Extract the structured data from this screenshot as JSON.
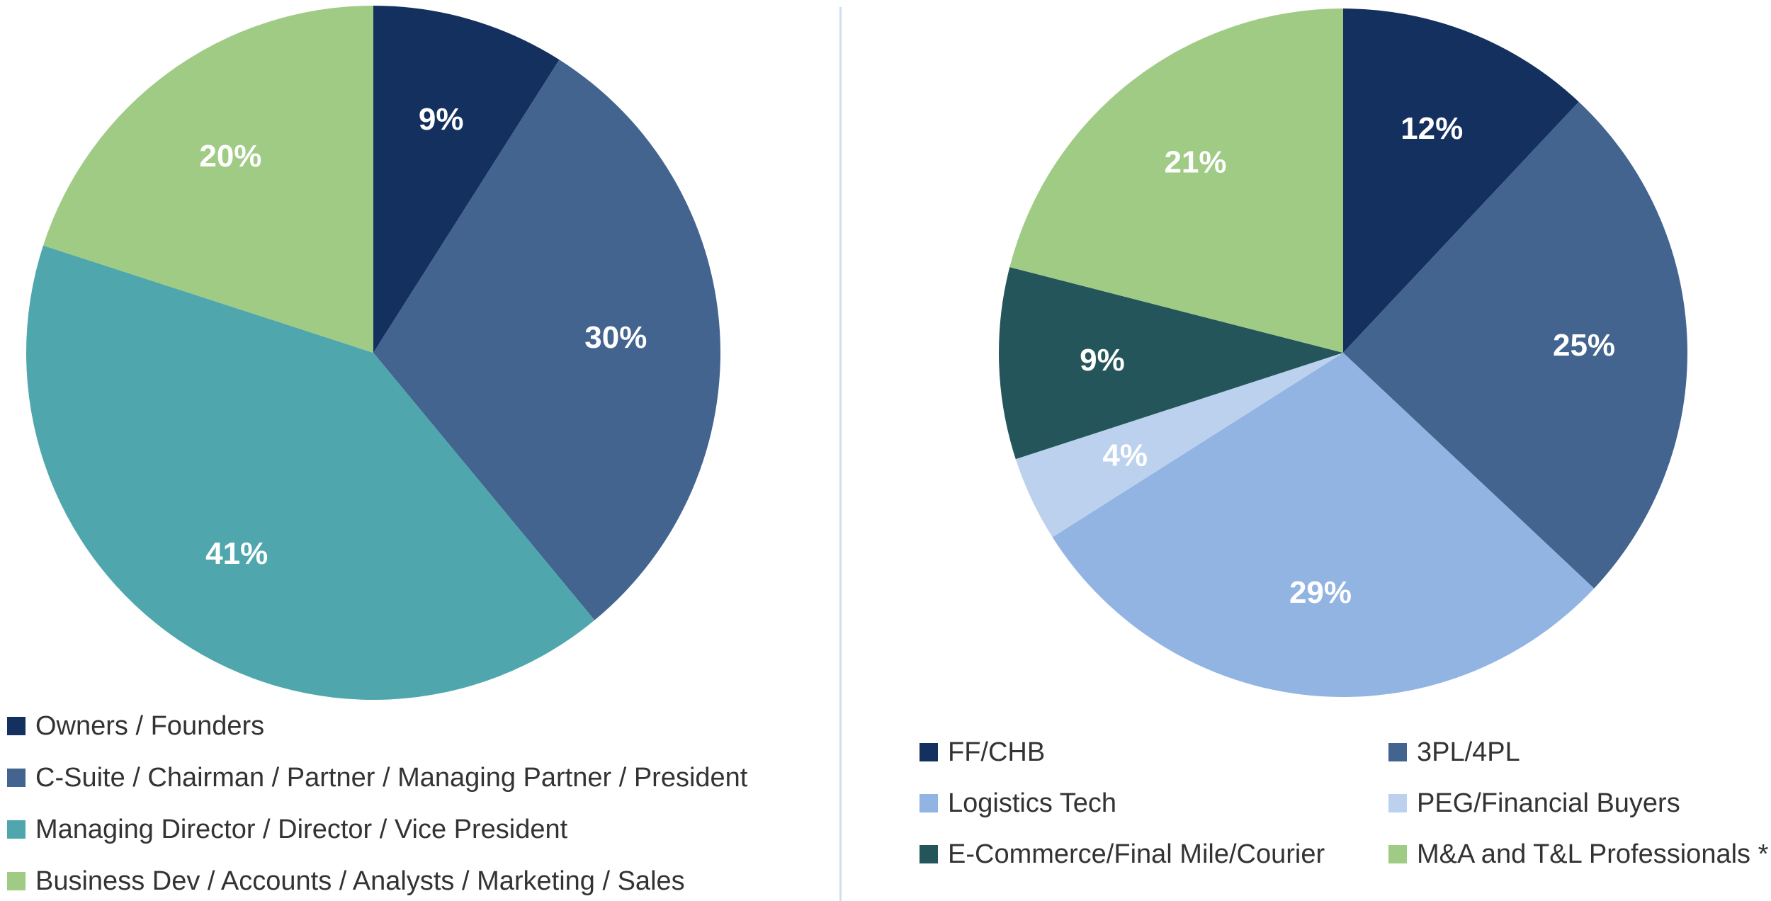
{
  "chart_data": [
    {
      "type": "pie",
      "title": "",
      "slices": [
        {
          "label": "Owners / Founders",
          "value": 9,
          "display": "9%",
          "color": "#14305f"
        },
        {
          "label": "C-Suite / Chairman / Partner / Managing Partner / President",
          "value": 30,
          "display": "30%",
          "color": "#42648f"
        },
        {
          "label": "Managing Director / Director / Vice President",
          "value": 41,
          "display": "41%",
          "color": "#4fa7ad"
        },
        {
          "label": "Business Dev / Accounts / Analysts / Marketing / Sales",
          "value": 20,
          "display": "20%",
          "color": "#a0cb84"
        }
      ]
    },
    {
      "type": "pie",
      "title": "",
      "slices": [
        {
          "label": "FF/CHB",
          "value": 12,
          "display": "12%",
          "color": "#14305f"
        },
        {
          "label": "3PL/4PL",
          "value": 25,
          "display": "25%",
          "color": "#42648f"
        },
        {
          "label": "Logistics Tech",
          "value": 29,
          "display": "29%",
          "color": "#91b4e2"
        },
        {
          "label": "PEG/Financial Buyers",
          "value": 4,
          "display": "4%",
          "color": "#bcd1ee"
        },
        {
          "label": "E-Commerce/Final Mile/Courier",
          "value": 9,
          "display": "9%",
          "color": "#23555a"
        },
        {
          "label": "M&A and T&L Professionals *",
          "value": 21,
          "display": "21%",
          "color": "#a0cb84"
        }
      ]
    }
  ]
}
